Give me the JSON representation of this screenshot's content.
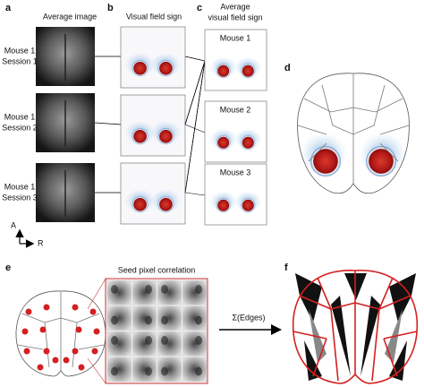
{
  "panels": {
    "a": {
      "label": "a",
      "title": "Average image",
      "rows": [
        [
          "Mouse 1",
          "Session 1"
        ],
        [
          "Mouse 1",
          "Session 2"
        ],
        [
          "Mouse 1",
          "Session 3"
        ]
      ]
    },
    "b": {
      "label": "b",
      "title": "Visual field sign"
    },
    "c": {
      "label": "c",
      "title": [
        "Average",
        "visual field sign"
      ],
      "mice": [
        "Mouse 1",
        "Mouse 2",
        "Mouse 3"
      ]
    },
    "d": {
      "label": "d"
    },
    "e": {
      "label": "e",
      "title": "Seed pixel correlation"
    },
    "f": {
      "label": "f",
      "arrow_label": "Σ(Edges)"
    }
  },
  "orientation": {
    "anterior": "A",
    "right": "R"
  }
}
